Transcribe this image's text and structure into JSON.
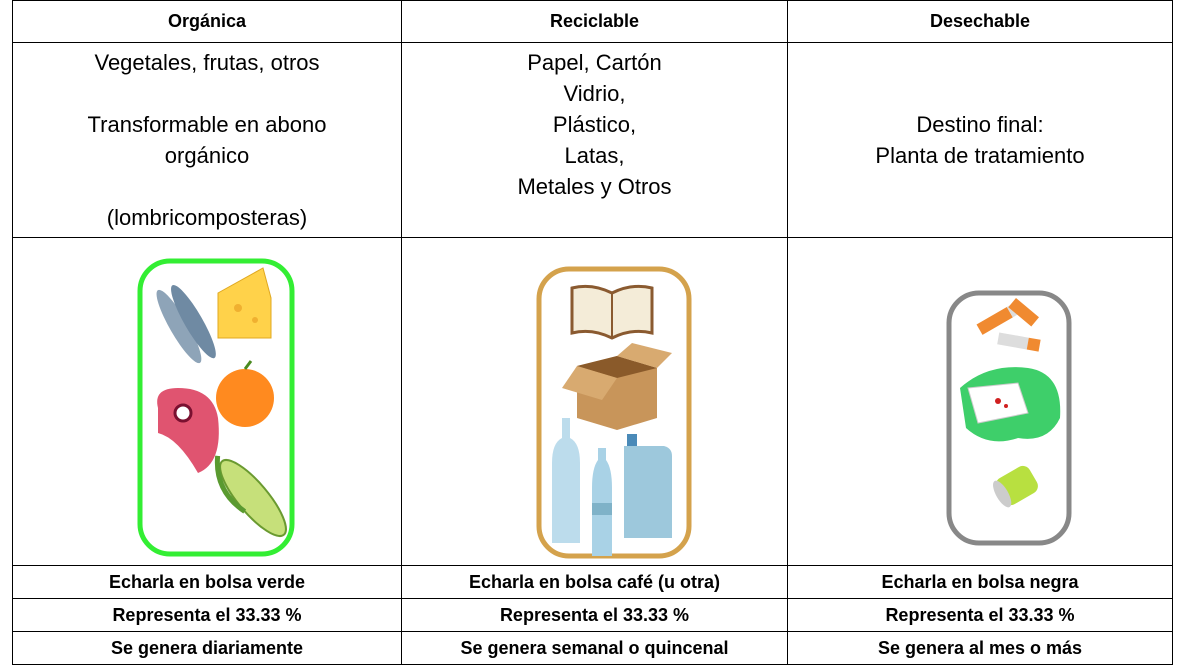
{
  "table": {
    "header": [
      "Orgánica",
      "Reciclable",
      "Desechable"
    ],
    "descriptions": [
      [
        [
          "Vegetales, frutas, otros"
        ],
        [
          "Transformable en abono",
          "orgánico"
        ],
        [
          "(lombricomposteras)"
        ]
      ],
      [
        [
          "Papel, Cartón",
          "Vidrio,",
          "Plástico,",
          "Latas,",
          "Metales y Otros"
        ]
      ],
      [
        [
          "Destino final:",
          "Planta de tratamiento"
        ]
      ]
    ],
    "rows": [
      [
        "Echarla en bolsa verde",
        "Echarla en bolsa café (u otra)",
        "Echarla en bolsa negra"
      ],
      [
        "Representa el 33.33 %",
        "Representa el 33.33 %",
        "Representa el 33.33 %"
      ],
      [
        "Se genera diariamente",
        "Se genera semanal o quincenal",
        "Se genera al mes o más"
      ]
    ]
  }
}
